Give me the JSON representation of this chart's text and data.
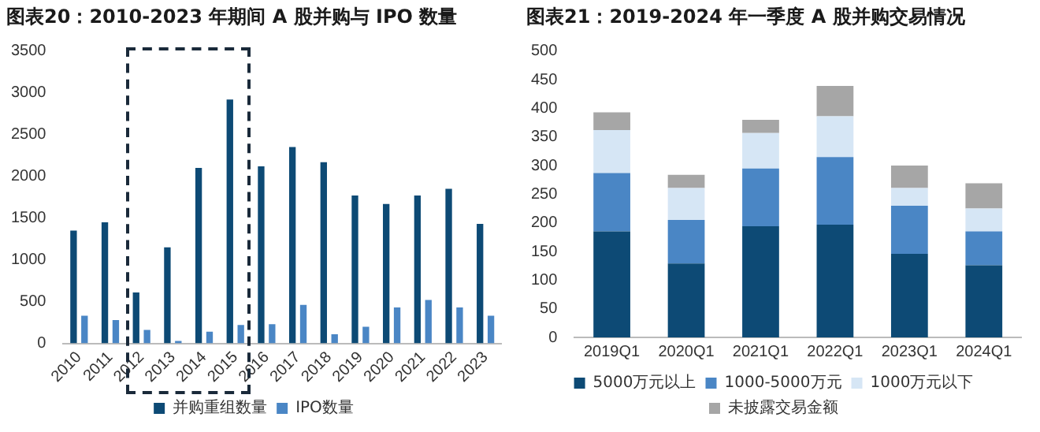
{
  "chart_data": [
    {
      "type": "bar",
      "title": "图表20：2010-2023 年期间 A 股并购与 IPO 数量",
      "categories": [
        "2010",
        "2011",
        "2012",
        "2013",
        "2014",
        "2015",
        "2016",
        "2017",
        "2018",
        "2019",
        "2020",
        "2021",
        "2022",
        "2023"
      ],
      "series": [
        {
          "name": "并购重组数量",
          "color": "#0d4a75",
          "values": [
            1350,
            1450,
            610,
            1150,
            2100,
            2920,
            2120,
            2350,
            2170,
            1770,
            1670,
            1770,
            1850,
            1430
          ]
        },
        {
          "name": "IPO数量",
          "color": "#4a86c5",
          "values": [
            330,
            280,
            160,
            30,
            140,
            220,
            230,
            460,
            110,
            200,
            430,
            520,
            430,
            330
          ]
        }
      ],
      "ylim": [
        0,
        3500
      ],
      "yticks": [
        0,
        500,
        1000,
        1500,
        2000,
        2500,
        3000,
        3500
      ],
      "legend": "bottom"
    },
    {
      "type": "bar",
      "title": "图表21：2019-2024 年一季度 A 股并购交易情况",
      "categories": [
        "2019Q1",
        "2020Q1",
        "2021Q1",
        "2022Q1",
        "2023Q1",
        "2024Q1"
      ],
      "stacked": true,
      "series": [
        {
          "name": "5000万元以上",
          "color": "#0d4a75",
          "values": [
            185,
            129,
            194,
            197,
            146,
            126
          ]
        },
        {
          "name": "1000-5000万元",
          "color": "#4a86c5",
          "values": [
            102,
            76,
            101,
            118,
            84,
            59
          ]
        },
        {
          "name": "1000万元以下",
          "color": "#d6e6f5",
          "values": [
            75,
            56,
            62,
            71,
            31,
            40
          ]
        },
        {
          "name": "未披露交易金额",
          "color": "#a6a6a6",
          "values": [
            31,
            23,
            23,
            53,
            39,
            44
          ]
        }
      ],
      "ylim": [
        0,
        500
      ],
      "yticks": [
        0,
        50,
        100,
        150,
        200,
        250,
        300,
        350,
        400,
        450,
        500
      ],
      "legend": "bottom"
    }
  ]
}
